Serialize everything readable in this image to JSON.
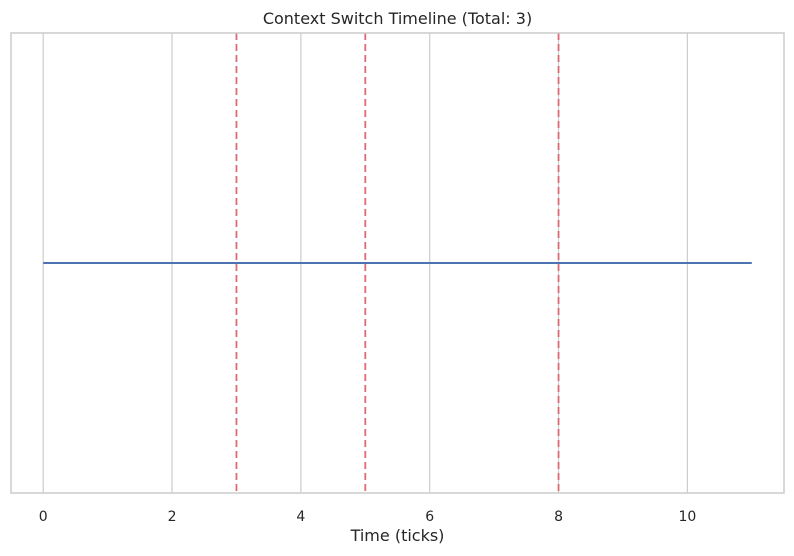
{
  "chart_data": {
    "type": "line",
    "title": "Context Switch Timeline (Total: 3)",
    "xlabel": "Time (ticks)",
    "ylabel": "",
    "xlim": [
      -0.5,
      11.5
    ],
    "ylim": [
      -1,
      1
    ],
    "x_ticks": [
      0,
      2,
      4,
      6,
      8,
      10
    ],
    "x_tick_labels": [
      "0",
      "2",
      "4",
      "6",
      "8",
      "10"
    ],
    "grid": "vertical",
    "series": [
      {
        "x": [
          0,
          11
        ],
        "y": [
          0,
          0
        ],
        "color": "#4c72b0"
      }
    ],
    "context_switches": [
      3,
      5,
      8
    ],
    "switch_line_style": "dashed",
    "switch_color": "#dd6b75",
    "grid_color": "#cccccc",
    "spine_color": "#cccccc"
  }
}
